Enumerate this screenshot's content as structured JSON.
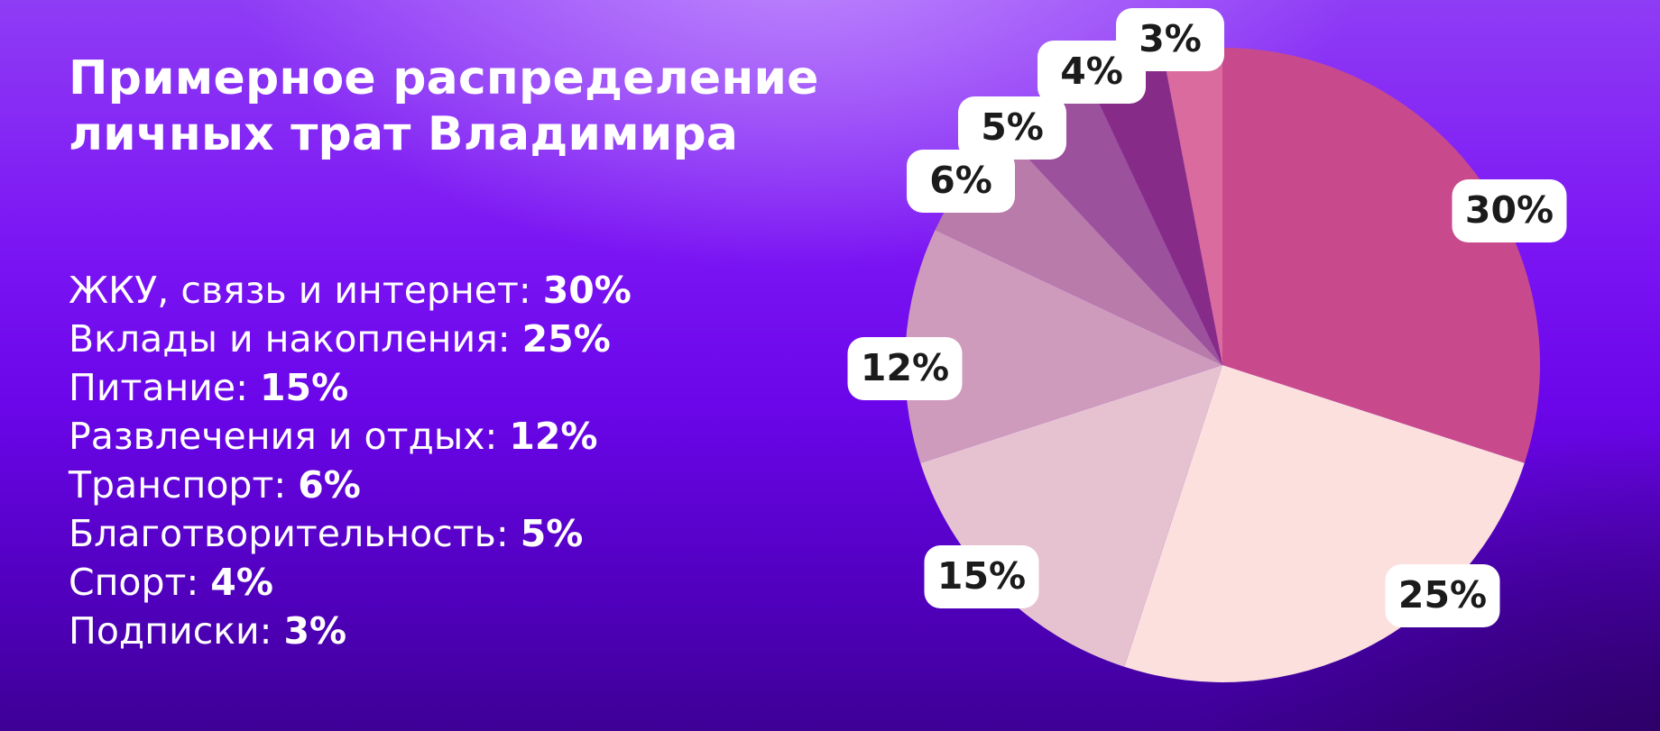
{
  "title": "Примерное распределение личных трат Владимира",
  "chart_data": {
    "type": "pie",
    "title": "Примерное распределение личных трат Владимира",
    "unit": "%",
    "slices": [
      {
        "label": "ЖКУ, связь и интернет",
        "value": 30,
        "display": "30%",
        "color": "#c94a8c"
      },
      {
        "label": "Вклады и накопления",
        "value": 25,
        "display": "25%",
        "color": "#fbe0de"
      },
      {
        "label": "Питание",
        "value": 15,
        "display": "15%",
        "color": "#e6c2d1"
      },
      {
        "label": "Развлечения и отдых",
        "value": 12,
        "display": "12%",
        "color": "#cf9bbd"
      },
      {
        "label": "Транспорт",
        "value": 6,
        "display": "6%",
        "color": "#b87baa"
      },
      {
        "label": "Благотворительность",
        "value": 5,
        "display": "5%",
        "color": "#9c519c"
      },
      {
        "label": "Спорт",
        "value": 4,
        "display": "4%",
        "color": "#862c88"
      },
      {
        "label": "Подписки",
        "value": 3,
        "display": "3%",
        "color": "#d96b9e"
      }
    ],
    "start": "12 o'clock",
    "direction": "clockwise",
    "legend_placement": "left"
  }
}
